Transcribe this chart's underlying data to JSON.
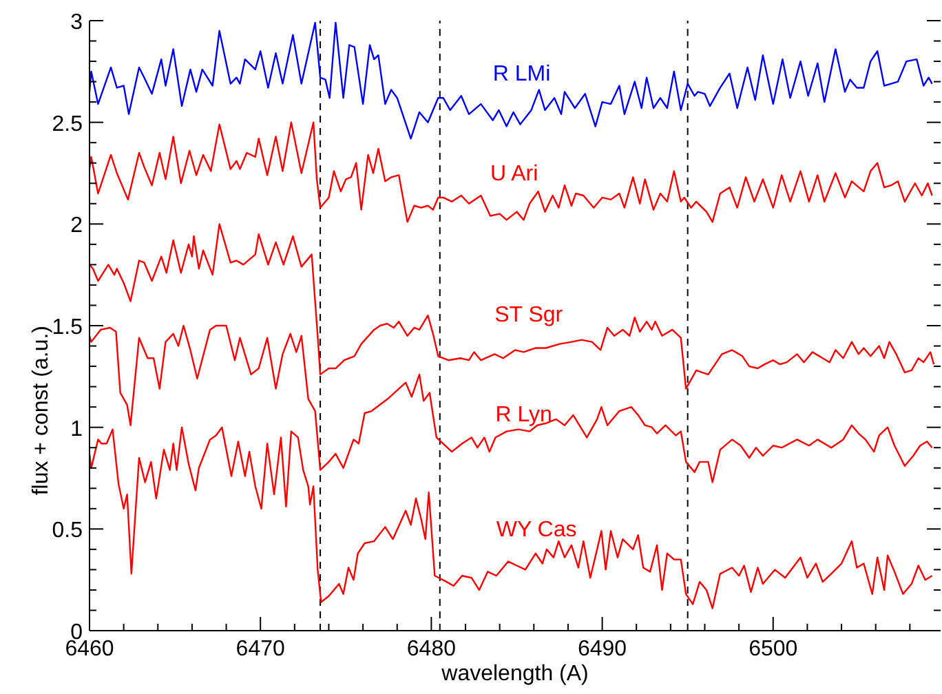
{
  "chart_data": {
    "type": "line",
    "xlabel": "wavelength (A)",
    "ylabel": "flux + const (a.u.)",
    "xlim": [
      6460,
      6509.8
    ],
    "ylim": [
      0,
      3
    ],
    "xticks": [
      6460,
      {
        "value": 6462,
        "label": null
      },
      {
        "value": 6464,
        "label": null
      },
      {
        "value": 6466,
        "label": null
      },
      {
        "value": 6468,
        "label": null
      },
      6470,
      {
        "value": 6472,
        "label": null
      },
      {
        "value": 6474,
        "label": null
      },
      {
        "value": 6476,
        "label": null
      },
      {
        "value": 6478,
        "label": null
      },
      6480,
      {
        "value": 6482,
        "label": null
      },
      {
        "value": 6484,
        "label": null
      },
      {
        "value": 6486,
        "label": null
      },
      {
        "value": 6488,
        "label": null
      },
      6490,
      {
        "value": 6492,
        "label": null
      },
      {
        "value": 6494,
        "label": null
      },
      {
        "value": 6496,
        "label": null
      },
      {
        "value": 6498,
        "label": null
      },
      6500,
      {
        "value": 6502,
        "label": null
      },
      {
        "value": 6504,
        "label": null
      },
      {
        "value": 6506,
        "label": null
      },
      {
        "value": 6508,
        "label": null
      }
    ],
    "yticks": [
      0,
      {
        "value": 0.1,
        "label": null
      },
      {
        "value": 0.2,
        "label": null
      },
      {
        "value": 0.3,
        "label": null
      },
      {
        "value": 0.4,
        "label": null
      },
      0.5,
      {
        "value": 0.6,
        "label": null
      },
      {
        "value": 0.7,
        "label": null
      },
      {
        "value": 0.8,
        "label": null
      },
      {
        "value": 0.9,
        "label": null
      },
      1,
      {
        "value": 1.1,
        "label": null
      },
      {
        "value": 1.2,
        "label": null
      },
      {
        "value": 1.3,
        "label": null
      },
      {
        "value": 1.4,
        "label": null
      },
      1.5,
      {
        "value": 1.6,
        "label": null
      },
      {
        "value": 1.7,
        "label": null
      },
      {
        "value": 1.8,
        "label": null
      },
      {
        "value": 1.9,
        "label": null
      },
      2,
      {
        "value": 2.1,
        "label": null
      },
      {
        "value": 2.2,
        "label": null
      },
      {
        "value": 2.3,
        "label": null
      },
      {
        "value": 2.4,
        "label": null
      },
      2.5,
      {
        "value": 2.6,
        "label": null
      },
      {
        "value": 2.7,
        "label": null
      },
      {
        "value": 2.8,
        "label": null
      },
      {
        "value": 2.9,
        "label": null
      },
      3
    ],
    "grid": false,
    "legend": false,
    "line_style": "solid",
    "ref_lines": [
      {
        "axis": "x",
        "value": 6473.5,
        "color": "#000000",
        "line_style": "dashed"
      },
      {
        "axis": "x",
        "value": 6480.5,
        "color": "#000000",
        "line_style": "dashed"
      },
      {
        "axis": "x",
        "value": 6495,
        "color": "#000000",
        "line_style": "dashed"
      }
    ],
    "series": [
      {
        "name": "R LMi",
        "color": "#0000ff",
        "x": [
          6460,
          6460.1,
          6460.5,
          6461.25,
          6461.6,
          6462,
          6462.3,
          6462.9,
          6463.2,
          6463.65,
          6464.2,
          6464.45,
          6464.9,
          6465.4,
          6465.9,
          6466.25,
          6466.6,
          6467.2,
          6467.6,
          6468.25,
          6468.6,
          6468.8,
          6469.1,
          6469.7,
          6470,
          6470.45,
          6470.9,
          6471.3,
          6471.9,
          6472.4,
          6473.2,
          6473.5,
          6473.8,
          6474.05,
          6474.4,
          6474.85,
          6475.2,
          6475.5,
          6476,
          6476.4,
          6476.65,
          6476.9,
          6477.3,
          6477.65,
          6478,
          6478.8,
          6479.3,
          6479.8,
          6480.4,
          6480.7,
          6481.1,
          6481.75,
          6482.2,
          6482.9,
          6483.6,
          6483.95,
          6484.4,
          6484.8,
          6485.2,
          6485.85,
          6486.3,
          6486.65,
          6487.2,
          6487.6,
          6487.8,
          6488.4,
          6489,
          6489.6,
          6490,
          6490.5,
          6491,
          6491.3,
          6491.9,
          6492.3,
          6492.6,
          6493,
          6493.4,
          6493.8,
          6494.2,
          6494.6,
          6495,
          6495.4,
          6495.6,
          6496,
          6496.3,
          6496.9,
          6497.45,
          6497.9,
          6498.5,
          6498.95,
          6499.4,
          6500,
          6500.55,
          6501,
          6501.6,
          6502.05,
          6502.6,
          6503,
          6503.65,
          6504.2,
          6504.5,
          6504.9,
          6505.3,
          6505.7,
          6506.1,
          6506.5,
          6506.9,
          6507.3,
          6507.8,
          6508.4,
          6508.8,
          6509.1,
          6509.3
        ],
        "values": [
          2.65,
          2.75,
          2.59,
          2.77,
          2.67,
          2.68,
          2.54,
          2.77,
          2.72,
          2.64,
          2.81,
          2.68,
          2.86,
          2.58,
          2.76,
          2.65,
          2.76,
          2.68,
          2.95,
          2.69,
          2.72,
          2.69,
          2.81,
          2.76,
          2.85,
          2.67,
          2.84,
          2.69,
          2.93,
          2.69,
          2.99,
          2.72,
          2.71,
          2.62,
          2.99,
          2.62,
          2.88,
          2.87,
          2.59,
          2.88,
          2.81,
          2.83,
          2.59,
          2.66,
          2.62,
          2.42,
          2.55,
          2.5,
          2.62,
          2.62,
          2.56,
          2.63,
          2.54,
          2.59,
          2.51,
          2.56,
          2.48,
          2.55,
          2.49,
          2.56,
          2.66,
          2.56,
          2.62,
          2.54,
          2.65,
          2.57,
          2.64,
          2.48,
          2.6,
          2.59,
          2.68,
          2.54,
          2.7,
          2.57,
          2.72,
          2.57,
          2.62,
          2.57,
          2.75,
          2.56,
          2.69,
          2.63,
          2.65,
          2.64,
          2.58,
          2.67,
          2.74,
          2.57,
          2.77,
          2.61,
          2.83,
          2.59,
          2.81,
          2.62,
          2.8,
          2.63,
          2.79,
          2.6,
          2.86,
          2.65,
          2.71,
          2.67,
          2.67,
          2.8,
          2.85,
          2.68,
          2.69,
          2.7,
          2.8,
          2.81,
          2.68,
          2.72,
          2.69
        ]
      },
      {
        "name": "U Ari",
        "color": "#ff0000",
        "x": [
          6460,
          6460.1,
          6460.5,
          6461.25,
          6461.6,
          6462.25,
          6462.9,
          6463.2,
          6463.65,
          6464.1,
          6464.45,
          6464.9,
          6465.35,
          6465.85,
          6466.25,
          6466.65,
          6467.1,
          6467.6,
          6468.25,
          6468.6,
          6468.8,
          6469.2,
          6469.7,
          6469.9,
          6470.4,
          6470.9,
          6471.3,
          6471.8,
          6472.4,
          6473.1,
          6473.3,
          6473.5,
          6474,
          6474.3,
          6474.7,
          6475,
          6475.3,
          6475.6,
          6475.9,
          6476.3,
          6476.6,
          6476.9,
          6477.3,
          6477.65,
          6478.1,
          6478.6,
          6479,
          6479.4,
          6479.8,
          6480.1,
          6480.4,
          6480.7,
          6481.2,
          6481.75,
          6482.2,
          6482.9,
          6483.45,
          6484,
          6484.4,
          6485,
          6485.4,
          6485.75,
          6486.25,
          6486.65,
          6487.1,
          6487.45,
          6487.8,
          6488.2,
          6488.45,
          6488.9,
          6489.5,
          6490,
          6490.5,
          6491,
          6491.3,
          6491.8,
          6492.2,
          6492.5,
          6493,
          6493.4,
          6493.8,
          6494.2,
          6494.6,
          6494.8,
          6495.2,
          6495.5,
          6496.1,
          6496.45,
          6496.9,
          6497.45,
          6497.9,
          6498.4,
          6498.9,
          6499.4,
          6500,
          6500.5,
          6501,
          6501.6,
          6502.1,
          6502.6,
          6503,
          6503.65,
          6504.2,
          6504.6,
          6505.3,
          6505.7,
          6506.1,
          6506.5,
          6506.9,
          6507.3,
          6507.7,
          6508.3,
          6508.7,
          6509.05,
          6509.3
        ],
        "values": [
          2.27,
          2.33,
          2.15,
          2.34,
          2.25,
          2.12,
          2.35,
          2.28,
          2.19,
          2.35,
          2.22,
          2.43,
          2.2,
          2.36,
          2.24,
          2.34,
          2.26,
          2.49,
          2.27,
          2.31,
          2.27,
          2.35,
          2.33,
          2.42,
          2.24,
          2.43,
          2.26,
          2.5,
          2.25,
          2.5,
          2.22,
          2.08,
          2.13,
          2.26,
          2.16,
          2.22,
          2.23,
          2.3,
          2.07,
          2.34,
          2.25,
          2.37,
          2.21,
          2.23,
          2.24,
          2.01,
          2.09,
          2.08,
          2.09,
          2.07,
          2.13,
          2.13,
          2.11,
          2.14,
          2.1,
          2.14,
          2.04,
          2.05,
          2.02,
          2.06,
          2.02,
          2.1,
          2.16,
          2.06,
          2.14,
          2.08,
          2.19,
          2.09,
          2.15,
          2.14,
          2.08,
          2.13,
          2.12,
          2.15,
          2.08,
          2.23,
          2.1,
          2.22,
          2.07,
          2.15,
          2.11,
          2.26,
          2.11,
          2.13,
          2.08,
          2.11,
          2.06,
          2.01,
          2.15,
          2.18,
          2.08,
          2.23,
          2.11,
          2.22,
          2.08,
          2.24,
          2.11,
          2.26,
          2.11,
          2.24,
          2.11,
          2.25,
          2.13,
          2.21,
          2.16,
          2.26,
          2.3,
          2.18,
          2.19,
          2.21,
          2.11,
          2.2,
          2.14,
          2.2,
          2.14
        ]
      },
      {
        "name": "ST Sgr",
        "color": "#ff0000",
        "x": [
          6460,
          6460.2,
          6460.5,
          6461.1,
          6461.45,
          6461.6,
          6462,
          6462.4,
          6462.9,
          6463.2,
          6463.65,
          6464.2,
          6464.5,
          6464.9,
          6465.35,
          6465.8,
          6466,
          6466.1,
          6466.4,
          6466.65,
          6467.2,
          6467.6,
          6468.25,
          6468.6,
          6469,
          6469.7,
          6469.9,
          6470.45,
          6470.9,
          6471.35,
          6471.9,
          6472.4,
          6473,
          6473.2,
          6473.35,
          6473.5,
          6474,
          6474.4,
          6474.9,
          6475.5,
          6475.9,
          6476.65,
          6477,
          6477.4,
          6477.8,
          6478.1,
          6478.6,
          6479,
          6479.3,
          6479.8,
          6480.1,
          6480.4,
          6481,
          6481.7,
          6482.2,
          6482.5,
          6482.9,
          6483.7,
          6484.2,
          6484.9,
          6485.4,
          6486.1,
          6486.7,
          6487.5,
          6488.2,
          6488.8,
          6489.4,
          6489.9,
          6490.3,
          6490.7,
          6491.2,
          6491.6,
          6491.9,
          6492.2,
          6492.6,
          6492.9,
          6493.1,
          6493.5,
          6494.1,
          6494.6,
          6494.9,
          6495.5,
          6496.2,
          6497,
          6497.6,
          6498.2,
          6498.6,
          6499.1,
          6499.5,
          6500,
          6500.4,
          6500.8,
          6501.4,
          6501.8,
          6502.3,
          6502.9,
          6503.3,
          6503.65,
          6504.1,
          6504.6,
          6505,
          6505.3,
          6505.7,
          6506.2,
          6506.5,
          6506.8,
          6507.2,
          6507.7,
          6508.1,
          6508.5,
          6508.8,
          6509.2,
          6509.4
        ],
        "values": [
          1.8,
          1.78,
          1.72,
          1.8,
          1.75,
          1.78,
          1.71,
          1.62,
          1.82,
          1.81,
          1.72,
          1.84,
          1.76,
          1.92,
          1.76,
          1.9,
          1.84,
          1.94,
          1.78,
          1.87,
          1.75,
          2,
          1.81,
          1.82,
          1.8,
          1.85,
          1.95,
          1.8,
          1.91,
          1.8,
          1.94,
          1.79,
          1.85,
          1.62,
          1.45,
          1.26,
          1.29,
          1.29,
          1.33,
          1.35,
          1.41,
          1.48,
          1.5,
          1.51,
          1.49,
          1.52,
          1.45,
          1.49,
          1.48,
          1.55,
          1.46,
          1.35,
          1.33,
          1.34,
          1.33,
          1.37,
          1.33,
          1.36,
          1.34,
          1.38,
          1.37,
          1.39,
          1.39,
          1.41,
          1.42,
          1.43,
          1.42,
          1.38,
          1.49,
          1.45,
          1.48,
          1.45,
          1.54,
          1.47,
          1.52,
          1.48,
          1.52,
          1.45,
          1.48,
          1.44,
          1.19,
          1.28,
          1.26,
          1.36,
          1.38,
          1.35,
          1.3,
          1.29,
          1.31,
          1.33,
          1.31,
          1.32,
          1.36,
          1.32,
          1.37,
          1.34,
          1.32,
          1.38,
          1.34,
          1.42,
          1.36,
          1.39,
          1.35,
          1.4,
          1.34,
          1.42,
          1.36,
          1.27,
          1.28,
          1.34,
          1.32,
          1.37,
          1.31
        ]
      },
      {
        "name": "R Lyn",
        "color": "#ff0000",
        "x": [
          6460,
          6460.1,
          6460.65,
          6461.2,
          6461.55,
          6461.8,
          6462.2,
          6462.4,
          6462.9,
          6463.4,
          6463.75,
          6464.1,
          6464.45,
          6464.9,
          6465.2,
          6465.5,
          6465.9,
          6466.3,
          6467.05,
          6467.4,
          6468,
          6468.5,
          6468.8,
          6469.45,
          6469.9,
          6470.4,
          6470.9,
          6471.3,
          6471.75,
          6472.1,
          6472.4,
          6472.8,
          6473.2,
          6473.5,
          6474,
          6474.4,
          6474.85,
          6475.45,
          6475.75,
          6476.1,
          6476.5,
          6477.45,
          6478.1,
          6478.5,
          6478.85,
          6479.3,
          6479.55,
          6479.9,
          6480.3,
          6481.2,
          6481.8,
          6482.35,
          6482.7,
          6483.1,
          6483.4,
          6483.75,
          6484.4,
          6485.1,
          6485.75,
          6486.2,
          6486.7,
          6487.3,
          6487.8,
          6488.3,
          6489.1,
          6489.7,
          6489.95,
          6490.3,
          6491,
          6491.7,
          6492.1,
          6492.5,
          6492.9,
          6493.2,
          6493.7,
          6494.3,
          6494.6,
          6494.9,
          6495.4,
          6495.7,
          6496.2,
          6496.45,
          6496.9,
          6497.6,
          6498.1,
          6498.6,
          6499,
          6499.4,
          6500,
          6500.5,
          6501.4,
          6502.1,
          6502.6,
          6503.4,
          6504.1,
          6504.6,
          6505,
          6505.4,
          6505.9,
          6506.2,
          6506.7,
          6507.1,
          6507.7,
          6508.2,
          6508.6,
          6509,
          6509.3
        ],
        "values": [
          1.45,
          1.42,
          1.48,
          1.49,
          1.47,
          1.17,
          1.11,
          1.01,
          1.44,
          1.34,
          1.34,
          1.19,
          1.42,
          1.46,
          1.4,
          1.5,
          1.38,
          1.24,
          1.48,
          1.5,
          1.5,
          1.33,
          1.44,
          1.26,
          1.29,
          1.44,
          1.19,
          1.36,
          1.46,
          1.37,
          1.45,
          1.14,
          1.08,
          0.79,
          0.83,
          0.87,
          0.8,
          0.94,
          0.92,
          1.07,
          1.08,
          1.14,
          1.19,
          1.22,
          1.15,
          1.26,
          1.13,
          1.17,
          0.95,
          0.88,
          0.92,
          0.95,
          0.9,
          0.95,
          0.88,
          0.95,
          0.98,
          0.99,
          0.98,
          1.01,
          1.02,
          1.04,
          1.01,
          1.06,
          0.95,
          1.04,
          1.1,
          1.01,
          1.08,
          1.1,
          1.06,
          1.01,
          1,
          0.97,
          1.01,
          0.96,
          0.98,
          0.83,
          0.78,
          0.83,
          0.83,
          0.73,
          0.89,
          0.94,
          0.91,
          0.85,
          0.9,
          0.86,
          0.91,
          0.9,
          0.94,
          0.91,
          0.94,
          0.9,
          0.94,
          1.01,
          0.97,
          0.94,
          0.88,
          0.96,
          1,
          0.91,
          0.81,
          0.86,
          0.91,
          0.93,
          0.9
        ]
      },
      {
        "name": "WY Cas",
        "color": "#ff0000",
        "x": [
          6460,
          6460.1,
          6460.5,
          6460.7,
          6461,
          6461.35,
          6461.7,
          6462,
          6462.2,
          6462.45,
          6462.9,
          6463.25,
          6463.6,
          6463.9,
          6464.35,
          6464.7,
          6464.9,
          6465.1,
          6465.4,
          6465.8,
          6466.2,
          6466.4,
          6467.05,
          6467.4,
          6467.75,
          6468.3,
          6468.7,
          6469.1,
          6469.35,
          6469.7,
          6470.05,
          6470.4,
          6470.8,
          6471.2,
          6471.5,
          6471.8,
          6472.2,
          6472.5,
          6472.8,
          6472.9,
          6473.1,
          6473.35,
          6473.55,
          6474,
          6474.6,
          6474.85,
          6475.15,
          6475.45,
          6475.7,
          6476.1,
          6476.65,
          6477.3,
          6477.75,
          6478.5,
          6478.8,
          6479.1,
          6479.4,
          6479.65,
          6479.85,
          6480.2,
          6480.9,
          6481.3,
          6481.8,
          6482.35,
          6482.8,
          6483.3,
          6483.8,
          6484.5,
          6485,
          6485.5,
          6486.1,
          6486.5,
          6486.75,
          6487.15,
          6487.45,
          6487.8,
          6488.2,
          6488.6,
          6488.9,
          6489.3,
          6489.7,
          6489.95,
          6490.2,
          6490.5,
          6490.9,
          6491.2,
          6491.8,
          6492.1,
          6492.4,
          6492.8,
          6493.2,
          6493.5,
          6493.8,
          6494.2,
          6494.6,
          6494.9,
          6495.3,
          6495.7,
          6496.1,
          6496.45,
          6496.9,
          6497.6,
          6498,
          6498.3,
          6498.7,
          6499.1,
          6499.4,
          6500.1,
          6500.7,
          6501.6,
          6502,
          6502.5,
          6502.9,
          6503.4,
          6504,
          6504.6,
          6504.9,
          6505.3,
          6505.8,
          6506.1,
          6506.5,
          6506.7,
          6507.1,
          6507.6,
          6508.1,
          6508.5,
          6508.9,
          6509.3
        ],
        "values": [
          0.87,
          0.8,
          0.94,
          0.92,
          0.92,
          0.99,
          0.72,
          0.6,
          0.67,
          0.28,
          0.85,
          0.73,
          0.83,
          0.65,
          0.89,
          0.79,
          0.92,
          0.79,
          1,
          0.82,
          0.69,
          0.8,
          0.94,
          0.96,
          1,
          0.76,
          0.93,
          0.76,
          0.88,
          0.71,
          0.6,
          0.92,
          0.67,
          0.95,
          0.61,
          0.98,
          0.95,
          0.79,
          0.71,
          0.62,
          0.71,
          0.3,
          0.14,
          0.17,
          0.23,
          0.18,
          0.31,
          0.25,
          0.38,
          0.43,
          0.44,
          0.51,
          0.45,
          0.59,
          0.52,
          0.65,
          0.55,
          0.45,
          0.68,
          0.27,
          0.24,
          0.22,
          0.27,
          0.26,
          0.2,
          0.29,
          0.27,
          0.34,
          0.32,
          0.3,
          0.38,
          0.33,
          0.4,
          0.36,
          0.44,
          0.36,
          0.42,
          0.31,
          0.44,
          0.26,
          0.4,
          0.49,
          0.3,
          0.49,
          0.36,
          0.45,
          0.4,
          0.47,
          0.31,
          0.29,
          0.42,
          0.2,
          0.38,
          0.35,
          0.35,
          0.18,
          0.13,
          0.24,
          0.2,
          0.11,
          0.28,
          0.31,
          0.27,
          0.32,
          0.19,
          0.31,
          0.23,
          0.3,
          0.26,
          0.36,
          0.26,
          0.33,
          0.24,
          0.28,
          0.33,
          0.44,
          0.31,
          0.33,
          0.18,
          0.36,
          0.2,
          0.37,
          0.29,
          0.18,
          0.23,
          0.32,
          0.25,
          0.27
        ]
      }
    ]
  }
}
